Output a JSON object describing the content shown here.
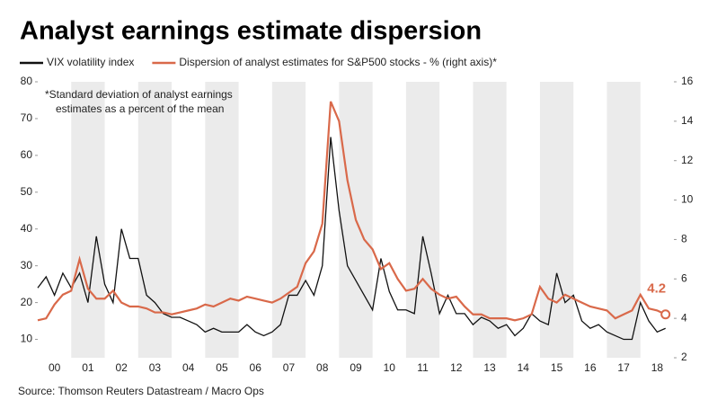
{
  "chart_data": {
    "type": "line",
    "title": "Analyst earnings estimate dispersion",
    "annotation": "*Standard deviation of analyst earnings estimates as a percent of the mean",
    "source": "Source: Thomson Reuters Datastream / Macro Ops",
    "x": [
      2000,
      2000.25,
      2000.5,
      2000.75,
      2001,
      2001.25,
      2001.5,
      2001.75,
      2002,
      2002.25,
      2002.5,
      2002.75,
      2003,
      2003.25,
      2003.5,
      2003.75,
      2004,
      2004.25,
      2004.5,
      2004.75,
      2005,
      2005.25,
      2005.5,
      2005.75,
      2006,
      2006.25,
      2006.5,
      2006.75,
      2007,
      2007.25,
      2007.5,
      2007.75,
      2008,
      2008.25,
      2008.5,
      2008.75,
      2009,
      2009.25,
      2009.5,
      2009.75,
      2010,
      2010.25,
      2010.5,
      2010.75,
      2011,
      2011.25,
      2011.5,
      2011.75,
      2012,
      2012.25,
      2012.5,
      2012.75,
      2013,
      2013.25,
      2013.5,
      2013.75,
      2014,
      2014.25,
      2014.5,
      2014.75,
      2015,
      2015.25,
      2015.5,
      2015.75,
      2016,
      2016.25,
      2016.5,
      2016.75,
      2017,
      2017.25,
      2017.5,
      2017.75,
      2018,
      2018.25,
      2018.5,
      2018.75
    ],
    "series": [
      {
        "name": "VIX volatility index",
        "color": "#111111",
        "values": [
          24,
          27,
          22,
          28,
          24,
          28,
          20,
          38,
          25,
          20,
          40,
          32,
          32,
          22,
          20,
          17,
          16,
          16,
          15,
          14,
          12,
          13,
          12,
          12,
          12,
          14,
          12,
          11,
          12,
          14,
          22,
          22,
          26,
          22,
          30,
          65,
          45,
          30,
          26,
          22,
          18,
          32,
          23,
          18,
          18,
          17,
          38,
          28,
          17,
          22,
          17,
          17,
          14,
          16,
          15,
          13,
          14,
          11,
          13,
          17,
          15,
          14,
          28,
          20,
          22,
          15,
          13,
          14,
          12,
          11,
          10,
          10,
          20,
          15,
          12,
          13
        ]
      },
      {
        "name": "Dispersion of analyst estimates for S&P500 stocks - % (right axis)*",
        "color": "#d9694a",
        "axis": "y2",
        "values": [
          3.9,
          4.0,
          4.7,
          5.2,
          5.4,
          7.0,
          5.5,
          5.0,
          5.0,
          5.4,
          4.8,
          4.6,
          4.6,
          4.5,
          4.3,
          4.3,
          4.2,
          4.3,
          4.4,
          4.5,
          4.7,
          4.6,
          4.8,
          5.0,
          4.9,
          5.1,
          5.0,
          4.9,
          4.8,
          5.0,
          5.3,
          5.6,
          6.8,
          7.4,
          8.8,
          15.0,
          14.0,
          11.0,
          9.0,
          8.0,
          7.5,
          6.5,
          6.8,
          6.0,
          5.4,
          5.5,
          6.0,
          5.5,
          5.2,
          5.0,
          5.1,
          4.6,
          4.2,
          4.2,
          4.0,
          4.0,
          4.0,
          3.9,
          4.0,
          4.2,
          5.6,
          5.0,
          4.8,
          5.2,
          5.0,
          4.8,
          4.6,
          4.5,
          4.4,
          4.0,
          4.2,
          4.4,
          5.2,
          4.5,
          4.4,
          4.2
        ],
        "value_labels": {
          "75": "4.2"
        }
      }
    ],
    "xlim": [
      2000,
      2019
    ],
    "xticks": [
      {
        "value": 2000.5,
        "label": "00"
      },
      {
        "value": 2001.5,
        "label": "01"
      },
      {
        "value": 2002.5,
        "label": "02"
      },
      {
        "value": 2003.5,
        "label": "03"
      },
      {
        "value": 2004.5,
        "label": "04"
      },
      {
        "value": 2005.5,
        "label": "05"
      },
      {
        "value": 2006.5,
        "label": "06"
      },
      {
        "value": 2007.5,
        "label": "07"
      },
      {
        "value": 2008.5,
        "label": "08"
      },
      {
        "value": 2009.5,
        "label": "09"
      },
      {
        "value": 2010.5,
        "label": "10"
      },
      {
        "value": 2011.5,
        "label": "11"
      },
      {
        "value": 2012.5,
        "label": "12"
      },
      {
        "value": 2013.5,
        "label": "13"
      },
      {
        "value": 2014.5,
        "label": "14"
      },
      {
        "value": 2015.5,
        "label": "15"
      },
      {
        "value": 2016.5,
        "label": "16"
      },
      {
        "value": 2017.5,
        "label": "17"
      },
      {
        "value": 2018.5,
        "label": "18"
      }
    ],
    "ylim": [
      5,
      80
    ],
    "yticks": [
      10,
      20,
      30,
      40,
      50,
      60,
      70,
      80
    ],
    "y2lim": [
      2,
      16
    ],
    "y2ticks": [
      2,
      4,
      6,
      8,
      10,
      12,
      14,
      16
    ]
  }
}
